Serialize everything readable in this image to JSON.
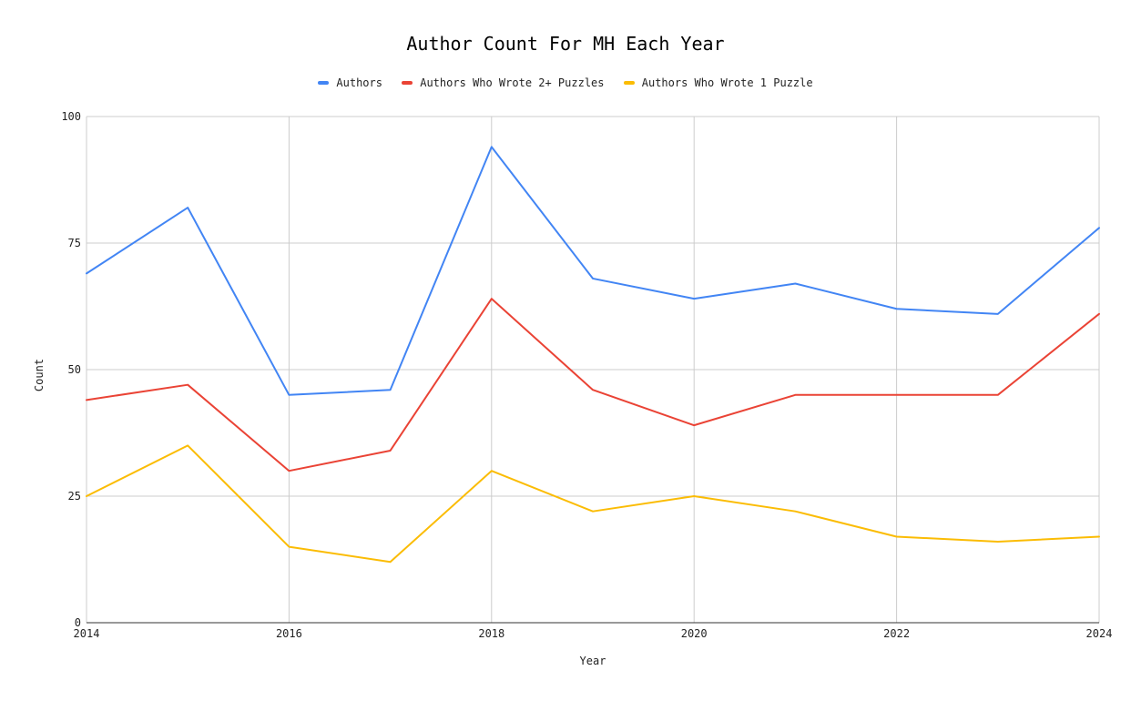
{
  "chart_data": {
    "type": "line",
    "title": "Author Count For MH Each Year",
    "xlabel": "Year",
    "ylabel": "Count",
    "x": [
      2014,
      2015,
      2016,
      2017,
      2018,
      2019,
      2020,
      2021,
      2022,
      2023,
      2024
    ],
    "xticks": [
      "2014",
      "2016",
      "2018",
      "2020",
      "2022",
      "2024"
    ],
    "yticks": [
      "0",
      "25",
      "50",
      "75",
      "100"
    ],
    "xlim": [
      2014,
      2024
    ],
    "ylim": [
      0,
      100
    ],
    "grid": true,
    "legend_position": "top",
    "series": [
      {
        "name": "Authors",
        "color": "#4285f4",
        "values": [
          69,
          82,
          45,
          46,
          94,
          68,
          64,
          67,
          62,
          61,
          78
        ]
      },
      {
        "name": "Authors Who Wrote 2+ Puzzles",
        "color": "#ea4335",
        "values": [
          44,
          47,
          30,
          34,
          64,
          46,
          39,
          45,
          45,
          45,
          61
        ]
      },
      {
        "name": "Authors Who Wrote 1 Puzzle",
        "color": "#fbbc04",
        "values": [
          25,
          35,
          15,
          12,
          30,
          22,
          25,
          22,
          17,
          16,
          17
        ]
      }
    ]
  }
}
